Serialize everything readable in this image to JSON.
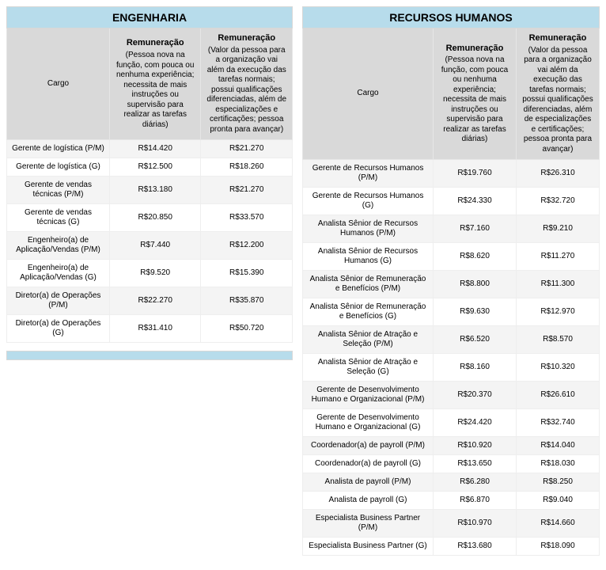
{
  "palette": {
    "title_bg": "#b7dceb",
    "header_bg": "#d9d9d9",
    "row_alt_bg": "#f4f4f4",
    "border": "#e6e6e6"
  },
  "left": {
    "title": "ENGENHARIA",
    "col_cargo": "Cargo",
    "col_rem1_bold": "Remuneração",
    "col_rem1_desc": "(Pessoa nova na função, com pouca ou nenhuma experiência; necessita de mais instruções ou supervisão para realizar as tarefas diárias)",
    "col_rem2_bold": "Remuneração",
    "col_rem2_desc": "(Valor da pessoa para a organização vai além da execução das tarefas normais; possui qualificações diferenciadas, além de especializações e certificações; pessoa pronta para avançar)",
    "rows": [
      {
        "cargo": "Gerente de logística (P/M)",
        "v1": "R$14.420",
        "v2": "R$21.270"
      },
      {
        "cargo": "Gerente de logística (G)",
        "v1": "R$12.500",
        "v2": "R$18.260"
      },
      {
        "cargo": "Gerente de vendas técnicas (P/M)",
        "v1": "R$13.180",
        "v2": "R$21.270"
      },
      {
        "cargo": "Gerente de vendas técnicas (G)",
        "v1": "R$20.850",
        "v2": "R$33.570"
      },
      {
        "cargo": "Engenheiro(a) de Aplicação/Vendas (P/M)",
        "v1": "R$7.440",
        "v2": "R$12.200"
      },
      {
        "cargo": "Engenheiro(a) de Aplicação/Vendas (G)",
        "v1": "R$9.520",
        "v2": "R$15.390"
      },
      {
        "cargo": "Diretor(a) de Operações (P/M)",
        "v1": "R$22.270",
        "v2": "R$35.870"
      },
      {
        "cargo": "Diretor(a) de Operações (G)",
        "v1": "R$31.410",
        "v2": "R$50.720"
      }
    ]
  },
  "right": {
    "title": "RECURSOS HUMANOS",
    "col_cargo": "Cargo",
    "col_rem1_bold": "Remuneração",
    "col_rem1_desc": "(Pessoa nova na função, com pouca ou nenhuma experiência; necessita de mais instruções ou supervisão para realizar as tarefas diárias)",
    "col_rem2_bold": "Remuneração",
    "col_rem2_desc": "(Valor da pessoa para a organização vai além da execução das tarefas normais; possui qualificações diferenciadas, além de especializações e certificações; pessoa pronta para avançar)",
    "rows": [
      {
        "cargo": "Gerente de Recursos Humanos (P/M)",
        "v1": "R$19.760",
        "v2": "R$26.310"
      },
      {
        "cargo": "Gerente de Recursos Humanos (G)",
        "v1": "R$24.330",
        "v2": "R$32.720"
      },
      {
        "cargo": "Analista Sênior de Recursos Humanos (P/M)",
        "v1": "R$7.160",
        "v2": "R$9.210"
      },
      {
        "cargo": "Analista Sênior de Recursos Humanos (G)",
        "v1": "R$8.620",
        "v2": "R$11.270"
      },
      {
        "cargo": "Analista Sênior de Remuneração e Benefícios (P/M)",
        "v1": "R$8.800",
        "v2": "R$11.300"
      },
      {
        "cargo": "Analista Sênior de Remuneração e Benefícios (G)",
        "v1": "R$9.630",
        "v2": "R$12.970"
      },
      {
        "cargo": "Analista Sênior de Atração e Seleção (P/M)",
        "v1": "R$6.520",
        "v2": "R$8.570"
      },
      {
        "cargo": "Analista Sênior de Atração e Seleção (G)",
        "v1": "R$8.160",
        "v2": "R$10.320"
      },
      {
        "cargo": "Gerente de Desenvolvimento Humano e Organizacional (P/M)",
        "v1": "R$20.370",
        "v2": "R$26.610"
      },
      {
        "cargo": "Gerente de Desenvolvimento Humano e Organizacional (G)",
        "v1": "R$24.420",
        "v2": "R$32.740"
      },
      {
        "cargo": "Coordenador(a) de payroll (P/M)",
        "v1": "R$10.920",
        "v2": "R$14.040"
      },
      {
        "cargo": "Coordenador(a) de payroll (G)",
        "v1": "R$13.650",
        "v2": "R$18.030"
      },
      {
        "cargo": "Analista de payroll (P/M)",
        "v1": "R$6.280",
        "v2": "R$8.250"
      },
      {
        "cargo": "Analista de payroll (G)",
        "v1": "R$6.870",
        "v2": "R$9.040"
      },
      {
        "cargo": "Especialista Business Partner (P/M)",
        "v1": "R$10.970",
        "v2": "R$14.660"
      },
      {
        "cargo": "Especialista Business Partner (G)",
        "v1": "R$13.680",
        "v2": "R$18.090"
      }
    ]
  }
}
